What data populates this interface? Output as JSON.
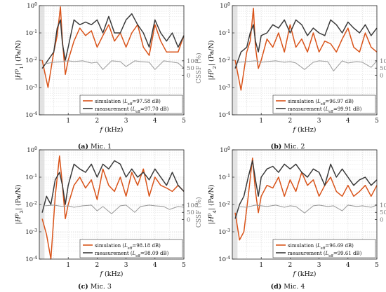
{
  "colors": {
    "simulation": "#d95319",
    "measurement": "#3a3a3a",
    "cssf": "#9a9a9a",
    "shade": "#e3e3e3",
    "grid": "#d9d9d9",
    "axis": "#222222"
  },
  "chart_data": [
    {
      "type": "line",
      "caption_tag": "(a)",
      "caption_text": "Mic. 1",
      "xlabel": "f (kHz)",
      "ylabel_left": "|H_1^p| (Pa/N)",
      "ylabel_right": "CSSF (%)",
      "xlim": [
        0,
        5
      ],
      "ylim": [
        0.0001,
        1
      ],
      "yscale": "log",
      "xticks": [
        1,
        2,
        3,
        4,
        5
      ],
      "yticks": [
        "10^-4",
        "10^-3",
        "10^-2",
        "10^-1",
        "10^0"
      ],
      "y2_ticks": [
        0,
        50,
        100
      ],
      "grid": true,
      "legend_position": "bottom-right",
      "shaded_band_x": [
        0,
        0.18
      ],
      "series": [
        {
          "name": "simulation",
          "l_eff": "97.58 dB",
          "x": [
            0.1,
            0.3,
            0.5,
            0.62,
            0.73,
            0.8,
            0.9,
            1.0,
            1.2,
            1.4,
            1.6,
            1.8,
            2.0,
            2.2,
            2.4,
            2.6,
            2.8,
            3.0,
            3.2,
            3.4,
            3.6,
            3.8,
            4.0,
            4.2,
            4.4,
            4.6,
            4.8,
            5.0
          ],
          "y": [
            0.01,
            0.001,
            0.02,
            0.08,
            0.9,
            0.05,
            0.003,
            0.01,
            0.05,
            0.15,
            0.08,
            0.12,
            0.03,
            0.08,
            0.2,
            0.05,
            0.1,
            0.03,
            0.1,
            0.2,
            0.03,
            0.015,
            0.2,
            0.05,
            0.02,
            0.02,
            0.02,
            0.08
          ]
        },
        {
          "name": "measurement",
          "l_eff": "97.70 dB",
          "x": [
            0.1,
            0.3,
            0.5,
            0.62,
            0.73,
            0.8,
            0.9,
            1.0,
            1.2,
            1.4,
            1.6,
            1.8,
            2.0,
            2.2,
            2.4,
            2.6,
            2.8,
            3.0,
            3.2,
            3.4,
            3.6,
            3.8,
            4.0,
            4.2,
            4.4,
            4.6,
            4.8,
            5.0
          ],
          "y": [
            0.005,
            0.01,
            0.02,
            0.15,
            0.3,
            0.04,
            0.01,
            0.03,
            0.3,
            0.2,
            0.25,
            0.2,
            0.3,
            0.1,
            0.4,
            0.1,
            0.1,
            0.3,
            0.5,
            0.2,
            0.1,
            0.03,
            0.3,
            0.1,
            0.05,
            0.1,
            0.03,
            0.08
          ]
        },
        {
          "name": "CSSF",
          "axis": "right",
          "x": [
            0.2,
            0.5,
            0.8,
            1.0,
            1.2,
            1.5,
            1.8,
            2.0,
            2.2,
            2.5,
            2.8,
            3.0,
            3.3,
            3.5,
            3.8,
            4.0,
            4.3,
            4.5,
            4.8,
            5.0
          ],
          "y": [
            80,
            90,
            95,
            100,
            95,
            100,
            85,
            90,
            40,
            100,
            95,
            60,
            100,
            95,
            90,
            40,
            100,
            95,
            85,
            50
          ]
        }
      ],
      "legend": [
        {
          "label": "simulation (L_eff=97.58 dB)",
          "series": "simulation"
        },
        {
          "label": "measurement (L_eff=97.70 dB)",
          "series": "measurement"
        }
      ]
    },
    {
      "type": "line",
      "caption_tag": "(b)",
      "caption_text": "Mic. 2",
      "xlabel": "f (kHz)",
      "ylabel_left": "|H_2^p| (Pa/N)",
      "ylabel_right": "CSSF (%)",
      "xlim": [
        0,
        5
      ],
      "ylim": [
        0.0001,
        1
      ],
      "yscale": "log",
      "xticks": [
        1,
        2,
        3,
        4,
        5
      ],
      "yticks": [
        "10^-4",
        "10^-3",
        "10^-2",
        "10^-1",
        "10^0"
      ],
      "y2_ticks": [
        0,
        50,
        100
      ],
      "grid": true,
      "legend_position": "bottom-right",
      "shaded_band_x": [
        0,
        0.18
      ],
      "series": [
        {
          "name": "simulation",
          "l_eff": "96.97 dB",
          "x": [
            0.1,
            0.3,
            0.5,
            0.62,
            0.73,
            0.8,
            0.9,
            1.0,
            1.2,
            1.4,
            1.6,
            1.8,
            2.0,
            2.2,
            2.4,
            2.6,
            2.8,
            3.0,
            3.2,
            3.4,
            3.6,
            3.8,
            4.0,
            4.2,
            4.4,
            4.6,
            4.8,
            5.0
          ],
          "y": [
            0.01,
            0.0008,
            0.02,
            0.05,
            0.8,
            0.03,
            0.005,
            0.01,
            0.06,
            0.03,
            0.1,
            0.02,
            0.2,
            0.03,
            0.06,
            0.02,
            0.1,
            0.02,
            0.05,
            0.04,
            0.02,
            0.06,
            0.15,
            0.03,
            0.02,
            0.1,
            0.03,
            0.02
          ]
        },
        {
          "name": "measurement",
          "l_eff": "99.91 dB",
          "x": [
            0.1,
            0.3,
            0.5,
            0.62,
            0.73,
            0.8,
            0.9,
            1.0,
            1.2,
            1.4,
            1.6,
            1.8,
            2.0,
            2.2,
            2.4,
            2.6,
            2.8,
            3.0,
            3.2,
            3.4,
            3.6,
            3.8,
            4.0,
            4.2,
            4.4,
            4.6,
            4.8,
            5.0
          ],
          "y": [
            0.005,
            0.02,
            0.03,
            0.1,
            0.2,
            0.05,
            0.02,
            0.08,
            0.1,
            0.2,
            0.15,
            0.3,
            0.1,
            0.3,
            0.2,
            0.08,
            0.15,
            0.1,
            0.08,
            0.3,
            0.2,
            0.1,
            0.25,
            0.15,
            0.1,
            0.2,
            0.08,
            0.15
          ]
        },
        {
          "name": "CSSF",
          "axis": "right",
          "x": [
            0.2,
            0.5,
            0.8,
            1.0,
            1.2,
            1.5,
            1.8,
            2.0,
            2.2,
            2.5,
            2.8,
            3.0,
            3.3,
            3.5,
            3.8,
            4.0,
            4.3,
            4.5,
            4.8,
            5.0
          ],
          "y": [
            90,
            95,
            100,
            90,
            95,
            100,
            90,
            95,
            85,
            40,
            90,
            100,
            95,
            30,
            100,
            85,
            95,
            90,
            55,
            100
          ]
        }
      ],
      "legend": [
        {
          "label": "simulation (L_eff=96.97 dB)",
          "series": "simulation"
        },
        {
          "label": "measurement (L_eff=99.91 dB)",
          "series": "measurement"
        }
      ]
    },
    {
      "type": "line",
      "caption_tag": "(c)",
      "caption_text": "Mic. 3",
      "xlabel": "f (kHz)",
      "ylabel_left": "|H_3^p| (Pa/N)",
      "ylabel_right": "CSSF (%)",
      "xlim": [
        0,
        5
      ],
      "ylim": [
        0.0001,
        1
      ],
      "yscale": "log",
      "xticks": [
        1,
        2,
        3,
        4,
        5
      ],
      "yticks": [
        "10^-4",
        "10^-3",
        "10^-2",
        "10^-1",
        "10^0"
      ],
      "y2_ticks": [
        0,
        50,
        100
      ],
      "grid": true,
      "legend_position": "bottom-right",
      "shaded_band_x": [
        0,
        0.18
      ],
      "series": [
        {
          "name": "simulation",
          "l_eff": "98.18 dB",
          "x": [
            0.1,
            0.25,
            0.4,
            0.55,
            0.7,
            0.8,
            0.9,
            1.0,
            1.2,
            1.4,
            1.6,
            1.8,
            2.0,
            2.2,
            2.4,
            2.6,
            2.8,
            3.0,
            3.2,
            3.4,
            3.6,
            3.8,
            4.0,
            4.2,
            4.4,
            4.6,
            4.8,
            5.0
          ],
          "y": [
            0.003,
            0.0008,
            0.0001,
            0.02,
            0.6,
            0.05,
            0.003,
            0.01,
            0.05,
            0.1,
            0.04,
            0.08,
            0.015,
            0.2,
            0.05,
            0.03,
            0.1,
            0.02,
            0.15,
            0.05,
            0.2,
            0.02,
            0.1,
            0.05,
            0.04,
            0.03,
            0.05,
            0.03
          ]
        },
        {
          "name": "measurement",
          "l_eff": "98.09 dB",
          "x": [
            0.1,
            0.25,
            0.4,
            0.55,
            0.7,
            0.8,
            0.9,
            1.0,
            1.2,
            1.4,
            1.6,
            1.8,
            2.0,
            2.2,
            2.4,
            2.6,
            2.8,
            3.0,
            3.2,
            3.4,
            3.6,
            3.8,
            4.0,
            4.2,
            4.4,
            4.6,
            4.8,
            5.0
          ],
          "y": [
            0.005,
            0.02,
            0.01,
            0.08,
            0.15,
            0.05,
            0.01,
            0.05,
            0.3,
            0.2,
            0.15,
            0.3,
            0.1,
            0.3,
            0.2,
            0.4,
            0.3,
            0.1,
            0.2,
            0.1,
            0.15,
            0.08,
            0.2,
            0.1,
            0.05,
            0.15,
            0.05,
            0.03
          ]
        },
        {
          "name": "CSSF",
          "axis": "right",
          "x": [
            0.2,
            0.5,
            0.8,
            1.0,
            1.2,
            1.5,
            1.8,
            2.0,
            2.2,
            2.5,
            2.8,
            3.0,
            3.3,
            3.5,
            3.8,
            4.0,
            4.3,
            4.5,
            4.8,
            5.0
          ],
          "y": [
            95,
            100,
            90,
            95,
            85,
            95,
            100,
            60,
            90,
            40,
            95,
            100,
            50,
            90,
            100,
            95,
            90,
            70,
            90,
            85
          ]
        }
      ],
      "legend": [
        {
          "label": "simulation (L_eff=98.18 dB)",
          "series": "simulation"
        },
        {
          "label": "measurement (L_eff=98.09 dB)",
          "series": "measurement"
        }
      ]
    },
    {
      "type": "line",
      "caption_tag": "(d)",
      "caption_text": "Mic. 4",
      "xlabel": "f (kHz)",
      "ylabel_left": "|H_4^p| (Pa/N)",
      "ylabel_right": "CSSF (%)",
      "xlim": [
        0,
        5
      ],
      "ylim": [
        0.0001,
        1
      ],
      "yscale": "log",
      "xticks": [
        1,
        2,
        3,
        4,
        5
      ],
      "yticks": [
        "10^-4",
        "10^-3",
        "10^-2",
        "10^-1",
        "10^0"
      ],
      "y2_ticks": [
        0,
        50,
        100
      ],
      "grid": true,
      "legend_position": "bottom-right",
      "shaded_band_x": [
        0,
        0.18
      ],
      "series": [
        {
          "name": "simulation",
          "l_eff": "96.69 dB",
          "x": [
            0.1,
            0.25,
            0.4,
            0.55,
            0.7,
            0.8,
            0.9,
            1.0,
            1.2,
            1.4,
            1.6,
            1.8,
            2.0,
            2.2,
            2.4,
            2.6,
            2.8,
            3.0,
            3.2,
            3.4,
            3.6,
            3.8,
            4.0,
            4.2,
            4.4,
            4.6,
            4.8,
            5.0
          ],
          "y": [
            0.005,
            0.0005,
            0.001,
            0.02,
            0.5,
            0.03,
            0.005,
            0.02,
            0.05,
            0.04,
            0.1,
            0.02,
            0.08,
            0.03,
            0.15,
            0.05,
            0.08,
            0.02,
            0.05,
            0.1,
            0.03,
            0.02,
            0.05,
            0.02,
            0.03,
            0.05,
            0.02,
            0.05
          ]
        },
        {
          "name": "measurement",
          "l_eff": "99.61 dB",
          "x": [
            0.1,
            0.25,
            0.4,
            0.55,
            0.7,
            0.8,
            0.9,
            1.0,
            1.2,
            1.4,
            1.6,
            1.8,
            2.0,
            2.2,
            2.4,
            2.6,
            2.8,
            3.0,
            3.2,
            3.4,
            3.6,
            3.8,
            4.0,
            4.2,
            4.4,
            4.6,
            4.8,
            5.0
          ],
          "y": [
            0.003,
            0.01,
            0.02,
            0.1,
            0.4,
            0.08,
            0.02,
            0.1,
            0.2,
            0.25,
            0.15,
            0.3,
            0.2,
            0.3,
            0.15,
            0.1,
            0.2,
            0.15,
            0.05,
            0.3,
            0.1,
            0.2,
            0.1,
            0.05,
            0.08,
            0.1,
            0.05,
            0.08
          ]
        },
        {
          "name": "CSSF",
          "axis": "right",
          "x": [
            0.2,
            0.5,
            0.8,
            1.0,
            1.2,
            1.5,
            1.8,
            2.0,
            2.2,
            2.5,
            2.8,
            3.0,
            3.3,
            3.5,
            3.8,
            4.0,
            4.3,
            4.5,
            4.8,
            5.0
          ],
          "y": [
            90,
            85,
            100,
            95,
            90,
            100,
            85,
            95,
            90,
            45,
            95,
            100,
            90,
            95,
            60,
            100,
            90,
            95,
            85,
            100
          ]
        }
      ],
      "legend": [
        {
          "label": "simulation (L_eff=96.69 dB)",
          "series": "simulation"
        },
        {
          "label": "measurement (L_eff=99.61 dB)",
          "series": "measurement"
        }
      ]
    }
  ]
}
